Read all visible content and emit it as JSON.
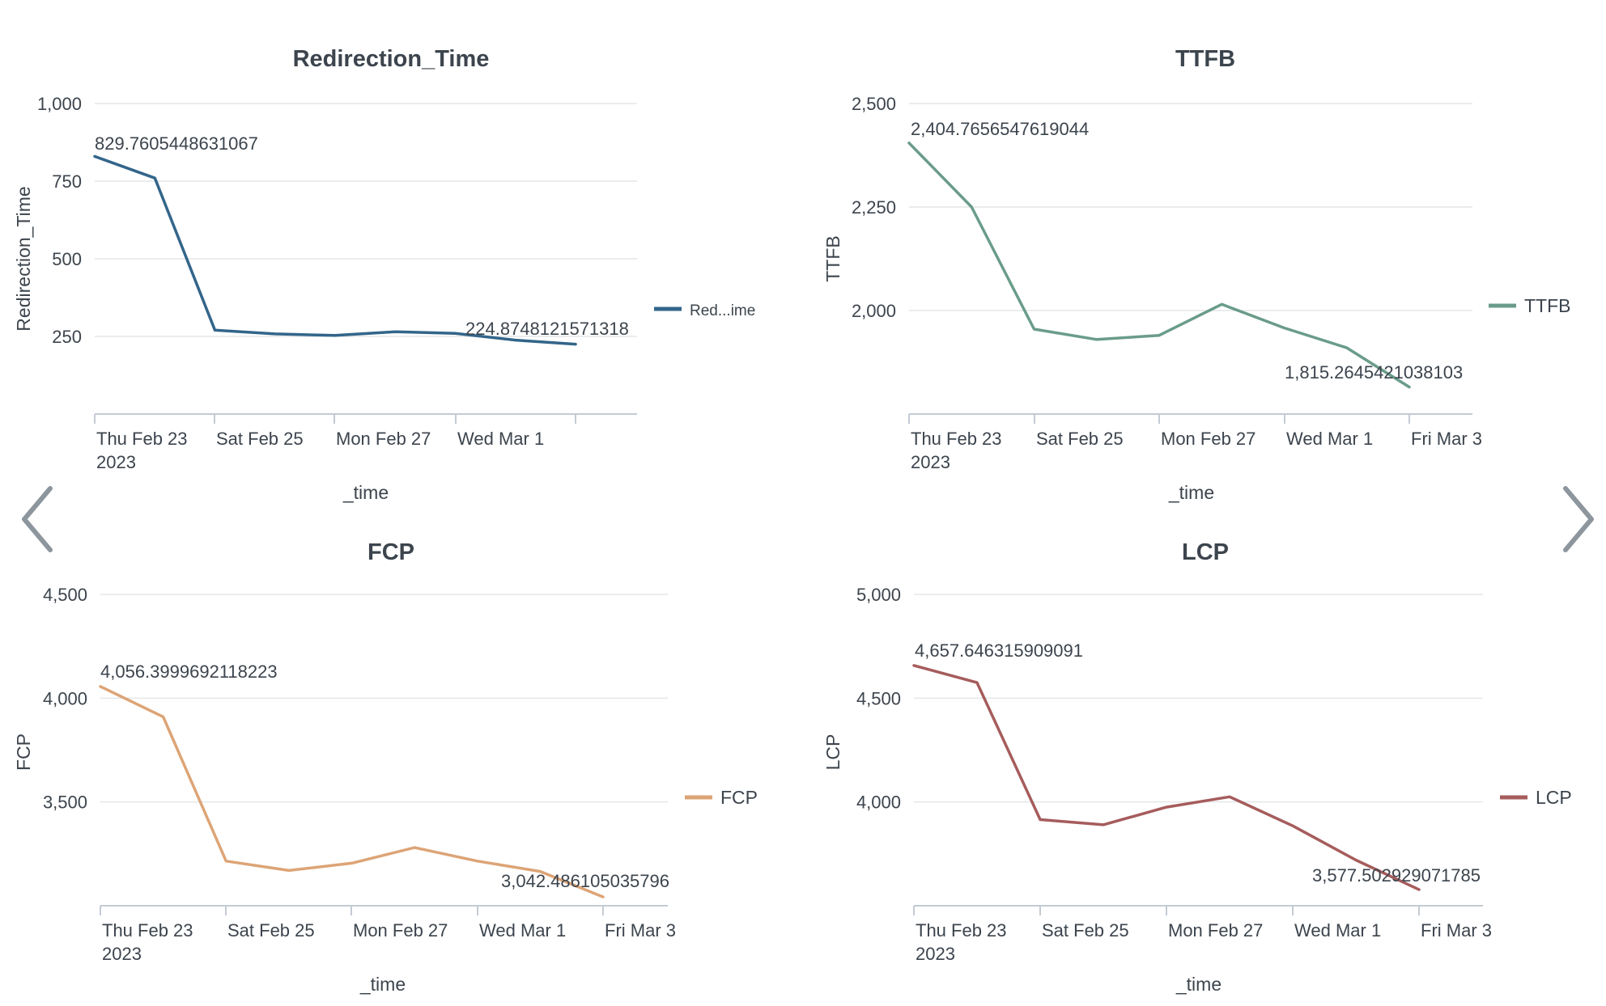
{
  "nav": {
    "prev_icon": "chevron-left-icon",
    "next_icon": "chevron-right-icon"
  },
  "chart_data": [
    {
      "type": "line",
      "title": "Redirection_Time",
      "xlabel": "_time",
      "ylabel": "Redirection_Time",
      "color": "#33658a",
      "x_ticks": [
        [
          "Thu Feb 23",
          "2023"
        ],
        [
          "Sat Feb 25"
        ],
        [
          "Mon Feb 27"
        ],
        [
          "Wed Mar 1"
        ],
        [
          ""
        ]
      ],
      "y_ticks": [
        "250",
        "500",
        "750",
        "1,000"
      ],
      "y_tick_values": [
        250,
        500,
        750,
        1000
      ],
      "ylim": [
        0,
        1000
      ],
      "x": [
        "2023-02-23",
        "2023-02-24",
        "2023-02-25",
        "2023-02-26",
        "2023-02-27",
        "2023-02-28",
        "2023-03-01",
        "2023-03-02",
        "2023-03-03"
      ],
      "series": [
        {
          "name": "Red...ime",
          "values": [
            829.7605448631067,
            760,
            270,
            258,
            253,
            265,
            260,
            238,
            224.8748121571318
          ]
        }
      ],
      "first_label": "829.7605448631067",
      "last_label": "224.8748121571318",
      "legend_position": "right",
      "grid": true
    },
    {
      "type": "line",
      "title": "TTFB",
      "xlabel": "_time",
      "ylabel": "TTFB",
      "color": "#6a9c89",
      "x_ticks": [
        [
          "Thu Feb 23",
          "2023"
        ],
        [
          "Sat Feb 25"
        ],
        [
          "Mon Feb 27"
        ],
        [
          "Wed Mar 1"
        ],
        [
          "Fri Mar 3"
        ]
      ],
      "y_ticks": [
        "2,000",
        "2,250",
        "2,500"
      ],
      "y_tick_values": [
        2000,
        2250,
        2500
      ],
      "ylim": [
        1750,
        2500
      ],
      "x": [
        "2023-02-23",
        "2023-02-24",
        "2023-02-25",
        "2023-02-26",
        "2023-02-27",
        "2023-02-28",
        "2023-03-01",
        "2023-03-02",
        "2023-03-03"
      ],
      "series": [
        {
          "name": "TTFB",
          "values": [
            2404.7656547619044,
            2250,
            1955,
            1930,
            1940,
            2015,
            1958,
            1910,
            1815.2645421038103
          ]
        }
      ],
      "first_label": "2,404.7656547619044",
      "last_label": "1,815.2645421038103",
      "legend_position": "right",
      "grid": true
    },
    {
      "type": "line",
      "title": "FCP",
      "xlabel": "_time",
      "ylabel": "FCP",
      "color": "#dda476",
      "x_ticks": [
        [
          "Thu Feb 23",
          "2023"
        ],
        [
          "Sat Feb 25"
        ],
        [
          "Mon Feb 27"
        ],
        [
          "Wed Mar 1"
        ],
        [
          "Fri Mar 3"
        ]
      ],
      "y_ticks": [
        "3,500",
        "4,000",
        "4,500"
      ],
      "y_tick_values": [
        3500,
        4000,
        4500
      ],
      "ylim": [
        3000,
        4500
      ],
      "x": [
        "2023-02-23",
        "2023-02-24",
        "2023-02-25",
        "2023-02-26",
        "2023-02-27",
        "2023-02-28",
        "2023-03-01",
        "2023-03-02",
        "2023-03-03"
      ],
      "series": [
        {
          "name": "FCP",
          "values": [
            4056.3999692118223,
            3910,
            3215,
            3170,
            3205,
            3280,
            3215,
            3165,
            3042.486105035796
          ]
        }
      ],
      "first_label": "4,056.3999692118223",
      "last_label": "3,042.486105035796",
      "legend_position": "right",
      "grid": true
    },
    {
      "type": "line",
      "title": "LCP",
      "xlabel": "_time",
      "ylabel": "LCP",
      "color": "#a65c5c",
      "x_ticks": [
        [
          "Thu Feb 23",
          "2023"
        ],
        [
          "Sat Feb 25"
        ],
        [
          "Mon Feb 27"
        ],
        [
          "Wed Mar 1"
        ],
        [
          "Fri Mar 3"
        ]
      ],
      "y_ticks": [
        "4,000",
        "4,500",
        "5,000"
      ],
      "y_tick_values": [
        4000,
        4500,
        5000
      ],
      "ylim": [
        3500,
        5000
      ],
      "x": [
        "2023-02-23",
        "2023-02-24",
        "2023-02-25",
        "2023-02-26",
        "2023-02-27",
        "2023-02-28",
        "2023-03-01",
        "2023-03-02",
        "2023-03-03"
      ],
      "series": [
        {
          "name": "LCP",
          "values": [
            4657.646315909091,
            4575,
            3915,
            3890,
            3975,
            4025,
            3885,
            3720,
            3577.502929071785
          ]
        }
      ],
      "first_label": "4,657.646315909091",
      "last_label": "3,577.502929071785",
      "legend_position": "right",
      "grid": true
    }
  ]
}
